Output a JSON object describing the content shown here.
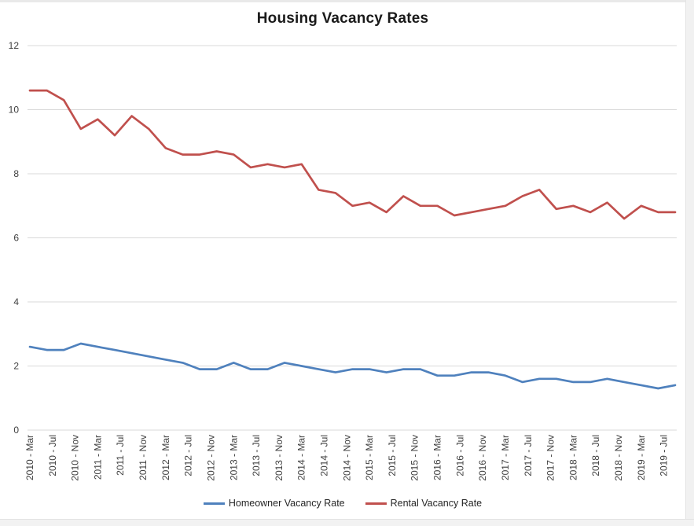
{
  "chart_data": {
    "type": "line",
    "title": "Housing Vacancy Rates",
    "xlabel": "",
    "ylabel": "",
    "ylim": [
      0,
      12
    ],
    "y_ticks": [
      0,
      2,
      4,
      6,
      8,
      10,
      12
    ],
    "grid": "horizontal-only",
    "grid_color": "#d9d9d9",
    "axis_label_color": "#404040",
    "title_color": "#1a1a1a",
    "legend_position": "bottom-center",
    "x_tick_labels": [
      "2010 - Mar",
      "2010 - Jul",
      "2010 - Nov",
      "2011 - Mar",
      "2011 - Jul",
      "2011 - Nov",
      "2012 - Mar",
      "2012 - Jul",
      "2012 - Nov",
      "2013 - Mar",
      "2013 - Jul",
      "2013 - Nov",
      "2014 - Mar",
      "2014 - Jul",
      "2014 - Nov",
      "2015 - Mar",
      "2015 - Jul",
      "2015 - Nov",
      "2016 - Mar",
      "2016 - Jul",
      "2016 - Nov",
      "2017 - Mar",
      "2017 - Jul",
      "2017 - Nov",
      "2018 - Mar",
      "2018 - Jul",
      "2018 - Nov",
      "2019 - Mar",
      "2019 - Jul"
    ],
    "x_months_per_tick": 4,
    "x_months_per_point": 3,
    "series": [
      {
        "name": "Homeowner Vacancy Rate",
        "color": "#4F81BD",
        "values": [
          2.6,
          2.5,
          2.5,
          2.7,
          2.6,
          2.5,
          2.4,
          2.3,
          2.2,
          2.1,
          1.9,
          1.9,
          2.1,
          1.9,
          1.9,
          2.1,
          2.0,
          1.9,
          1.8,
          1.9,
          1.9,
          1.8,
          1.9,
          1.9,
          1.7,
          1.7,
          1.8,
          1.8,
          1.7,
          1.5,
          1.6,
          1.6,
          1.5,
          1.5,
          1.6,
          1.5,
          1.4,
          1.3,
          1.4
        ]
      },
      {
        "name": "Rental Vacancy Rate",
        "color": "#C0504D",
        "values": [
          10.6,
          10.6,
          10.3,
          9.4,
          9.7,
          9.2,
          9.8,
          9.4,
          8.8,
          8.6,
          8.6,
          8.7,
          8.6,
          8.2,
          8.3,
          8.2,
          8.3,
          7.5,
          7.4,
          7.0,
          7.1,
          6.8,
          7.3,
          7.0,
          7.0,
          6.7,
          6.8,
          6.9,
          7.0,
          7.3,
          7.5,
          6.9,
          7.0,
          6.8,
          7.1,
          6.6,
          7.0,
          6.8,
          6.8
        ]
      }
    ]
  }
}
